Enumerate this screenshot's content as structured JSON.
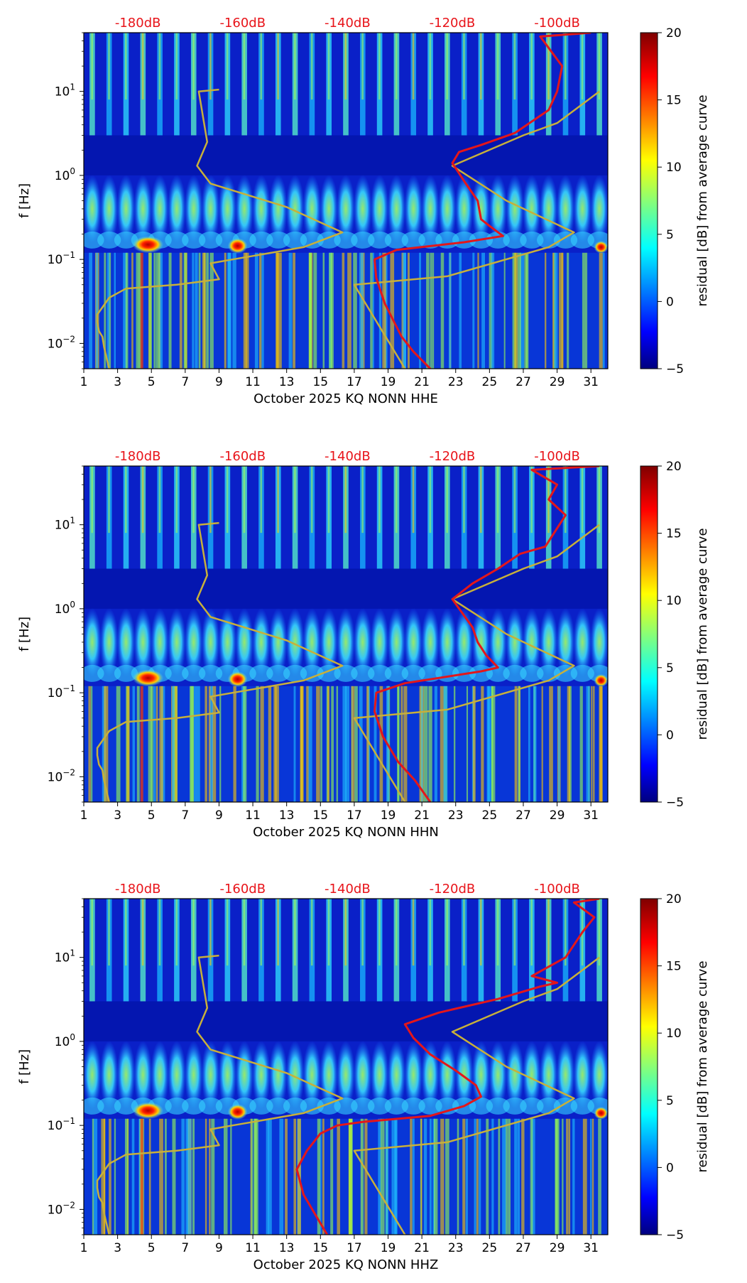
{
  "figure": {
    "colormap": "jet"
  },
  "chart_data": [
    {
      "type": "heatmap",
      "title": "",
      "xlabel": "October 2025 KQ NONN  HHE",
      "ylabel": "f [Hz]",
      "x_ticks": [
        "1",
        "3",
        "5",
        "7",
        "9",
        "11",
        "13",
        "15",
        "17",
        "19",
        "21",
        "23",
        "25",
        "27",
        "29",
        "31"
      ],
      "y_ticks": [
        {
          "value": 0.01,
          "base": "10",
          "exp": "−2"
        },
        {
          "value": 0.1,
          "base": "10",
          "exp": "−1"
        },
        {
          "value": 1,
          "base": "10",
          "exp": "0"
        },
        {
          "value": 10,
          "base": "10",
          "exp": "1"
        }
      ],
      "xlim": [
        1,
        32
      ],
      "ylim": [
        0.005,
        50
      ],
      "db_ticks": [
        {
          "label": "-180dB",
          "day": 4.2
        },
        {
          "label": "-160dB",
          "day": 10.4
        },
        {
          "label": "-140dB",
          "day": 16.6
        },
        {
          "label": "-120dB",
          "day": 22.8
        },
        {
          "label": "-100dB",
          "day": 29.0
        }
      ],
      "colorbar": {
        "label": "residual [dB] from average curve",
        "ticks": [
          20,
          15,
          10,
          5,
          0,
          -5
        ],
        "tick_labels": [
          "20",
          "15",
          "10",
          "5",
          "0",
          "−5"
        ],
        "min": -5,
        "max": 20
      },
      "series": [
        {
          "name": "noise model",
          "color": "#c8b03a",
          "points": [
            [
              2.5,
              0.005
            ],
            [
              2.2,
              0.009
            ],
            [
              2.1,
              0.012
            ],
            [
              1.9,
              0.014
            ],
            [
              1.8,
              0.018
            ],
            [
              1.8,
              0.022
            ],
            [
              2.5,
              0.035
            ],
            [
              3.5,
              0.045
            ],
            [
              6.5,
              0.05
            ],
            [
              9.0,
              0.058
            ],
            [
              8.5,
              0.09
            ],
            [
              9.8,
              0.1
            ],
            [
              11,
              0.11
            ],
            [
              14,
              0.14
            ],
            [
              16.3,
              0.21
            ],
            [
              13.0,
              0.42
            ],
            [
              8.5,
              0.8
            ],
            [
              7.7,
              1.3
            ],
            [
              8.3,
              2.5
            ],
            [
              7.8,
              10
            ],
            [
              9.0,
              10.5
            ]
          ]
        },
        {
          "name": "noise model right",
          "color": "#c8b03a",
          "points": [
            [
              20.0,
              0.005
            ],
            [
              17.0,
              0.05
            ],
            [
              22.5,
              0.063
            ],
            [
              28.5,
              0.14
            ],
            [
              30.0,
              0.21
            ],
            [
              26.0,
              0.5
            ],
            [
              22.8,
              1.3
            ],
            [
              27.0,
              3.0
            ],
            [
              29.0,
              4.2
            ],
            [
              31.5,
              10
            ]
          ]
        },
        {
          "name": "median",
          "color": "#e4161a",
          "points": [
            [
              21.5,
              0.005
            ],
            [
              20.5,
              0.008
            ],
            [
              19.8,
              0.012
            ],
            [
              18.8,
              0.03
            ],
            [
              18.3,
              0.06
            ],
            [
              18.2,
              0.1
            ],
            [
              19.5,
              0.13
            ],
            [
              23.5,
              0.16
            ],
            [
              25.8,
              0.19
            ],
            [
              25.0,
              0.25
            ],
            [
              24.5,
              0.3
            ],
            [
              24.3,
              0.5
            ],
            [
              23.6,
              0.8
            ],
            [
              22.8,
              1.4
            ],
            [
              23.2,
              1.9
            ],
            [
              24.5,
              2.3
            ],
            [
              26.5,
              3.2
            ],
            [
              28.5,
              6
            ],
            [
              29.0,
              10
            ],
            [
              29.3,
              20
            ],
            [
              28.0,
              45
            ],
            [
              31.0,
              50
            ]
          ]
        }
      ]
    },
    {
      "type": "heatmap",
      "title": "",
      "xlabel": "October 2025 KQ NONN  HHN",
      "ylabel": "f [Hz]",
      "x_ticks": [
        "1",
        "3",
        "5",
        "7",
        "9",
        "11",
        "13",
        "15",
        "17",
        "19",
        "21",
        "23",
        "25",
        "27",
        "29",
        "31"
      ],
      "y_ticks": [
        {
          "value": 0.01,
          "base": "10",
          "exp": "−2"
        },
        {
          "value": 0.1,
          "base": "10",
          "exp": "−1"
        },
        {
          "value": 1,
          "base": "10",
          "exp": "0"
        },
        {
          "value": 10,
          "base": "10",
          "exp": "1"
        }
      ],
      "xlim": [
        1,
        32
      ],
      "ylim": [
        0.005,
        50
      ],
      "db_ticks": [
        {
          "label": "-180dB",
          "day": 4.2
        },
        {
          "label": "-160dB",
          "day": 10.4
        },
        {
          "label": "-140dB",
          "day": 16.6
        },
        {
          "label": "-120dB",
          "day": 22.8
        },
        {
          "label": "-100dB",
          "day": 29.0
        }
      ],
      "colorbar": {
        "label": "residual [dB] from average curve",
        "ticks": [
          20,
          15,
          10,
          5,
          0,
          -5
        ],
        "tick_labels": [
          "20",
          "15",
          "10",
          "5",
          "0",
          "−5"
        ],
        "min": -5,
        "max": 20
      },
      "series": [
        {
          "name": "noise model",
          "color": "#c8b03a",
          "points": [
            [
              2.5,
              0.005
            ],
            [
              2.2,
              0.009
            ],
            [
              2.1,
              0.012
            ],
            [
              1.9,
              0.014
            ],
            [
              1.8,
              0.018
            ],
            [
              1.8,
              0.022
            ],
            [
              2.5,
              0.035
            ],
            [
              3.5,
              0.045
            ],
            [
              6.5,
              0.05
            ],
            [
              9.0,
              0.058
            ],
            [
              8.5,
              0.09
            ],
            [
              9.8,
              0.1
            ],
            [
              11,
              0.11
            ],
            [
              14,
              0.14
            ],
            [
              16.3,
              0.21
            ],
            [
              13.0,
              0.42
            ],
            [
              8.5,
              0.8
            ],
            [
              7.7,
              1.3
            ],
            [
              8.3,
              2.5
            ],
            [
              7.8,
              10
            ],
            [
              9.0,
              10.5
            ]
          ]
        },
        {
          "name": "noise model right",
          "color": "#c8b03a",
          "points": [
            [
              20.0,
              0.005
            ],
            [
              17.0,
              0.05
            ],
            [
              22.5,
              0.063
            ],
            [
              28.5,
              0.14
            ],
            [
              30.0,
              0.21
            ],
            [
              26.0,
              0.5
            ],
            [
              22.8,
              1.3
            ],
            [
              27.0,
              3.0
            ],
            [
              29.0,
              4.2
            ],
            [
              31.5,
              10
            ]
          ]
        },
        {
          "name": "median",
          "color": "#e4161a",
          "points": [
            [
              21.5,
              0.005
            ],
            [
              20.6,
              0.009
            ],
            [
              19.6,
              0.015
            ],
            [
              18.7,
              0.03
            ],
            [
              18.2,
              0.06
            ],
            [
              18.3,
              0.1
            ],
            [
              20.0,
              0.13
            ],
            [
              24.5,
              0.18
            ],
            [
              25.5,
              0.2
            ],
            [
              24.8,
              0.28
            ],
            [
              24.3,
              0.4
            ],
            [
              24.0,
              0.6
            ],
            [
              22.8,
              1.3
            ],
            [
              24.0,
              2.0
            ],
            [
              25.5,
              3.0
            ],
            [
              26.8,
              4.5
            ],
            [
              28.3,
              5.5
            ],
            [
              29.5,
              13
            ],
            [
              28.5,
              20
            ],
            [
              29.0,
              30
            ],
            [
              27.5,
              45
            ],
            [
              31.5,
              50
            ]
          ]
        }
      ]
    },
    {
      "type": "heatmap",
      "title": "",
      "xlabel": "October 2025 KQ NONN  HHZ",
      "ylabel": "f [Hz]",
      "x_ticks": [
        "1",
        "3",
        "5",
        "7",
        "9",
        "11",
        "13",
        "15",
        "17",
        "19",
        "21",
        "23",
        "25",
        "27",
        "29",
        "31"
      ],
      "y_ticks": [
        {
          "value": 0.01,
          "base": "10",
          "exp": "−2"
        },
        {
          "value": 0.1,
          "base": "10",
          "exp": "−1"
        },
        {
          "value": 1,
          "base": "10",
          "exp": "0"
        },
        {
          "value": 10,
          "base": "10",
          "exp": "1"
        }
      ],
      "xlim": [
        1,
        32
      ],
      "ylim": [
        0.005,
        50
      ],
      "db_ticks": [
        {
          "label": "-180dB",
          "day": 4.2
        },
        {
          "label": "-160dB",
          "day": 10.4
        },
        {
          "label": "-140dB",
          "day": 16.6
        },
        {
          "label": "-120dB",
          "day": 22.8
        },
        {
          "label": "-100dB",
          "day": 29.0
        }
      ],
      "colorbar": {
        "label": "residual [dB] from average curve",
        "ticks": [
          20,
          15,
          10,
          5,
          0,
          -5
        ],
        "tick_labels": [
          "20",
          "15",
          "10",
          "5",
          "0",
          "−5"
        ],
        "min": -5,
        "max": 20
      },
      "series": [
        {
          "name": "noise model",
          "color": "#c8b03a",
          "points": [
            [
              2.5,
              0.005
            ],
            [
              2.2,
              0.009
            ],
            [
              2.1,
              0.012
            ],
            [
              1.9,
              0.014
            ],
            [
              1.8,
              0.018
            ],
            [
              1.8,
              0.022
            ],
            [
              2.5,
              0.035
            ],
            [
              3.5,
              0.045
            ],
            [
              6.5,
              0.05
            ],
            [
              9.0,
              0.058
            ],
            [
              8.5,
              0.09
            ],
            [
              9.8,
              0.1
            ],
            [
              11,
              0.11
            ],
            [
              14,
              0.14
            ],
            [
              16.3,
              0.21
            ],
            [
              13.0,
              0.42
            ],
            [
              8.5,
              0.8
            ],
            [
              7.7,
              1.3
            ],
            [
              8.3,
              2.5
            ],
            [
              7.8,
              10
            ],
            [
              9.0,
              10.5
            ]
          ]
        },
        {
          "name": "noise model right",
          "color": "#c8b03a",
          "points": [
            [
              20.0,
              0.005
            ],
            [
              17.0,
              0.05
            ],
            [
              22.5,
              0.063
            ],
            [
              28.5,
              0.14
            ],
            [
              30.0,
              0.21
            ],
            [
              26.0,
              0.5
            ],
            [
              22.8,
              1.3
            ],
            [
              27.0,
              3.0
            ],
            [
              29.0,
              4.2
            ],
            [
              31.5,
              10
            ]
          ]
        },
        {
          "name": "median",
          "color": "#e4161a",
          "points": [
            [
              15.4,
              0.005
            ],
            [
              14.8,
              0.008
            ],
            [
              14.0,
              0.015
            ],
            [
              13.6,
              0.03
            ],
            [
              14.2,
              0.05
            ],
            [
              15.0,
              0.08
            ],
            [
              16.0,
              0.1
            ],
            [
              17.5,
              0.11
            ],
            [
              21.5,
              0.13
            ],
            [
              23.5,
              0.17
            ],
            [
              24.5,
              0.22
            ],
            [
              24.2,
              0.3
            ],
            [
              23.0,
              0.45
            ],
            [
              21.5,
              0.7
            ],
            [
              20.5,
              1.1
            ],
            [
              20.0,
              1.6
            ],
            [
              22.0,
              2.2
            ],
            [
              25.5,
              3.2
            ],
            [
              28.0,
              4.5
            ],
            [
              29.0,
              5.0
            ],
            [
              27.5,
              6
            ],
            [
              29.5,
              10
            ],
            [
              30.5,
              20
            ],
            [
              31.2,
              30
            ],
            [
              30.0,
              45
            ],
            [
              31.5,
              50
            ]
          ]
        }
      ]
    }
  ]
}
